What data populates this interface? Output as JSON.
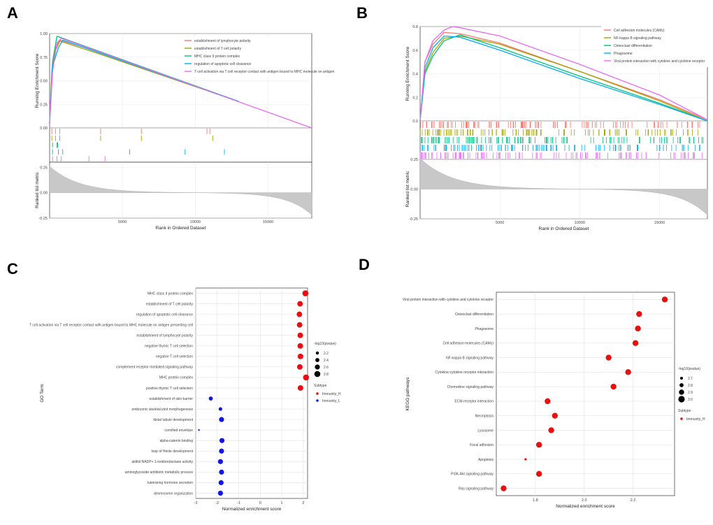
{
  "panel_letters": [
    "A",
    "B",
    "C",
    "D"
  ],
  "chart_data": [
    {
      "type": "line",
      "panel": "A",
      "title": "",
      "ylabel_top": "Running Enrichment Score",
      "ylabel_bottom": "Ranked list metric",
      "xlabel": "Rank in Ordered Dataset",
      "xlim": [
        0,
        18000
      ],
      "xticks": [
        5000,
        10000,
        15000
      ],
      "ylim_top": [
        0,
        1.0
      ],
      "yticks_top": [
        "0.00",
        "0.25",
        "0.50",
        "0.75",
        "1.00"
      ],
      "ylim_bottom": [
        -0.25,
        0.3
      ],
      "yticks_bottom": [
        "0.25",
        "0.00",
        "-0.25"
      ],
      "series": [
        {
          "name": "establishment of lymphocyte polarity",
          "color": "#F8766D",
          "x": [
            0,
            150,
            400,
            700,
            3500,
            13000
          ],
          "y": [
            0.05,
            0.6,
            0.85,
            0.93,
            0.8,
            0.28
          ],
          "hits": [
            150,
            400,
            700,
            3500,
            6300,
            10800,
            11000
          ]
        },
        {
          "name": "establishment of T cell polarity",
          "color": "#A3A500",
          "x": [
            0,
            150,
            400,
            700,
            3500,
            13000
          ],
          "y": [
            0.05,
            0.55,
            0.82,
            0.92,
            0.78,
            0.28
          ],
          "hits": [
            150,
            400,
            700,
            3500,
            6300,
            11200
          ]
        },
        {
          "name": "MHC class II protein complex",
          "color": "#00BF7D",
          "x": [
            0,
            200,
            500,
            550,
            13000
          ],
          "y": [
            0.05,
            0.7,
            0.97,
            0.97,
            0.28
          ],
          "hits": [
            200,
            500,
            550
          ]
        },
        {
          "name": "regulation of apoptotic cell clearance",
          "color": "#00B0F6",
          "x": [
            0,
            200,
            600,
            900,
            13000
          ],
          "y": [
            0.05,
            0.65,
            0.85,
            0.93,
            0.28
          ],
          "hits": [
            200,
            600,
            900,
            5500,
            9300,
            12000
          ]
        },
        {
          "name": "T cell activation via T cell receptor contact with antigen bound to MHC molecule on antigen",
          "color": "#E76BF3",
          "x": [
            0,
            200,
            500,
            800,
            18000
          ],
          "y": [
            0.05,
            0.6,
            0.9,
            0.95,
            0.0
          ],
          "hits": [
            200,
            500,
            800,
            2700,
            3800
          ]
        }
      ]
    },
    {
      "type": "line",
      "panel": "B",
      "title": "",
      "ylabel_top": "Running Enrichment Score",
      "ylabel_bottom": "Ranked list metric",
      "xlabel": "Rank in Ordered Dataset",
      "xlim": [
        0,
        18000
      ],
      "xticks": [
        5000,
        10000,
        15000
      ],
      "ylim_top": [
        0,
        0.8
      ],
      "yticks_top": [
        "0.0",
        "0.2",
        "0.4",
        "0.6",
        "0.8"
      ],
      "ylim_bottom": [
        -0.25,
        0.25
      ],
      "yticks_bottom": [
        "0.25",
        "0.00",
        "-0.25"
      ],
      "series": [
        {
          "name": "Cell adhesion molecules (CAMs)",
          "color": "#F8766D",
          "x": [
            0,
            300,
            800,
            1500,
            2500,
            5000,
            10000,
            15000,
            18000
          ],
          "y": [
            0.0,
            0.5,
            0.65,
            0.75,
            0.74,
            0.66,
            0.42,
            0.18,
            0.01
          ]
        },
        {
          "name": "NF-kappa B signaling pathway",
          "color": "#A3A500",
          "x": [
            0,
            300,
            800,
            1500,
            2500,
            5000,
            10000,
            15000,
            18000
          ],
          "y": [
            0.0,
            0.42,
            0.58,
            0.7,
            0.72,
            0.65,
            0.42,
            0.17,
            0.0
          ]
        },
        {
          "name": "Osteoclast differentiation",
          "color": "#00BF7D",
          "x": [
            0,
            300,
            800,
            1500,
            2500,
            5000,
            10000,
            15000,
            18000
          ],
          "y": [
            0.0,
            0.4,
            0.55,
            0.68,
            0.73,
            0.62,
            0.38,
            0.15,
            0.0
          ]
        },
        {
          "name": "Phagosome",
          "color": "#00B0F6",
          "x": [
            0,
            300,
            800,
            1500,
            2500,
            5000,
            10000,
            15000,
            18000
          ],
          "y": [
            0.0,
            0.45,
            0.62,
            0.72,
            0.71,
            0.6,
            0.36,
            0.14,
            0.0
          ]
        },
        {
          "name": "Viral protein interaction with cytokine and cytokine receptor",
          "color": "#E76BF3",
          "x": [
            0,
            300,
            800,
            1500,
            2000,
            2500,
            5000,
            10000,
            15000,
            18000
          ],
          "y": [
            0.0,
            0.5,
            0.68,
            0.77,
            0.8,
            0.79,
            0.72,
            0.48,
            0.22,
            0.01
          ]
        }
      ]
    },
    {
      "type": "scatter",
      "panel": "C",
      "xlabel": "Normalized enrichment score",
      "ylabel": "GO Term",
      "xlim": [
        -3,
        2.2
      ],
      "xticks": [
        -3,
        -2,
        -1,
        0,
        1,
        2
      ],
      "categories": [
        "MHC class II protein complex",
        "establishment of T cell polarity",
        "regulation of apoptotic cell clearance",
        "T cell activation via T cell receptor contact with antigen bound to MHC molecule on antigen presenting cell",
        "establishment of lymphocyte polarity",
        "negative thymic T cell selection",
        "negative T cell selection",
        "complement receptor mediated signaling pathway",
        "MHC protein complex",
        "positive thymic T cell selection",
        "establishment of skin barrier",
        "embryonic skeletal joint morphogenesis",
        "distal tubule development",
        "cornified envelope",
        "alpha-catenin binding",
        "loop of Henle development",
        "alditol:NADP+ 1-oxidoreductase activity",
        "aminoglycoside antibiotic metabolic process",
        "luteinizing hormone secretion",
        "desmosome organization"
      ],
      "x": [
        2.1,
        1.85,
        1.82,
        1.83,
        1.86,
        1.86,
        1.87,
        1.84,
        2.13,
        1.87,
        -2.3,
        -1.85,
        -1.8,
        -2.85,
        -1.78,
        -1.8,
        -1.85,
        -1.8,
        -1.82,
        -1.85
      ],
      "size_pvalue": [
        2.8,
        2.7,
        2.7,
        2.7,
        2.7,
        2.7,
        2.7,
        2.7,
        2.8,
        2.7,
        2.4,
        2.3,
        2.6,
        1.9,
        2.6,
        2.6,
        2.6,
        2.6,
        2.6,
        2.6
      ],
      "subtype": [
        "Immunity_H",
        "Immunity_H",
        "Immunity_H",
        "Immunity_H",
        "Immunity_H",
        "Immunity_H",
        "Immunity_H",
        "Immunity_H",
        "Immunity_H",
        "Immunity_H",
        "Immunity_L",
        "Immunity_L",
        "Immunity_L",
        "Immunity_L",
        "Immunity_L",
        "Immunity_L",
        "Immunity_L",
        "Immunity_L",
        "Immunity_L",
        "Immunity_L"
      ],
      "size_legend_title": "-log10(pvalue)",
      "size_legend": [
        "2.2",
        "2.4",
        "2.6",
        "2.8"
      ],
      "color_legend_title": "Subtype",
      "color_legend": [
        {
          "name": "Immunity_H",
          "color": "#E8100E"
        },
        {
          "name": "Immunity_L",
          "color": "#1515E6"
        }
      ]
    },
    {
      "type": "scatter",
      "panel": "D",
      "xlabel": "Normalized enrichment score",
      "ylabel": "KEGG pathways",
      "xlim": [
        1.64,
        2.37
      ],
      "xticks": [
        1.8,
        2.0,
        2.2
      ],
      "xtick_labels": [
        "1.8",
        "2.0",
        "2.2"
      ],
      "categories": [
        "Viral protein interaction with cytokine and cytokine receptor",
        "Osteoclast differentiation",
        "Phagosome",
        "Cell adhesion molecules (CAMs)",
        "NF-kappa B signaling pathway",
        "Cytokine-cytokine receptor interaction",
        "Chemokine signaling pathway",
        "ECM-receptor interaction",
        "Necroptosis",
        "Lysosome",
        "Focal adhesion",
        "Apoptosis",
        "PI3K-Akt signaling pathway",
        "Ras signaling pathway"
      ],
      "x": [
        2.33,
        2.225,
        2.22,
        2.21,
        2.1,
        2.18,
        2.12,
        1.85,
        1.88,
        1.865,
        1.815,
        1.76,
        1.815,
        1.67
      ],
      "size_pvalue": [
        2.95,
        2.95,
        2.95,
        2.95,
        2.95,
        2.95,
        2.95,
        2.95,
        2.95,
        2.95,
        2.95,
        2.65,
        2.95,
        2.95
      ],
      "subtype": [
        "Immunity_H",
        "Immunity_H",
        "Immunity_H",
        "Immunity_H",
        "Immunity_H",
        "Immunity_H",
        "Immunity_H",
        "Immunity_H",
        "Immunity_H",
        "Immunity_H",
        "Immunity_H",
        "Immunity_H",
        "Immunity_H",
        "Immunity_H"
      ],
      "size_legend_title": "-log10(pvalue)",
      "size_legend": [
        "2.7",
        "2.8",
        "2.9",
        "3.0"
      ],
      "color_legend_title": "Subtype",
      "color_legend": [
        {
          "name": "Immunity_H",
          "color": "#E8100E"
        }
      ]
    }
  ]
}
